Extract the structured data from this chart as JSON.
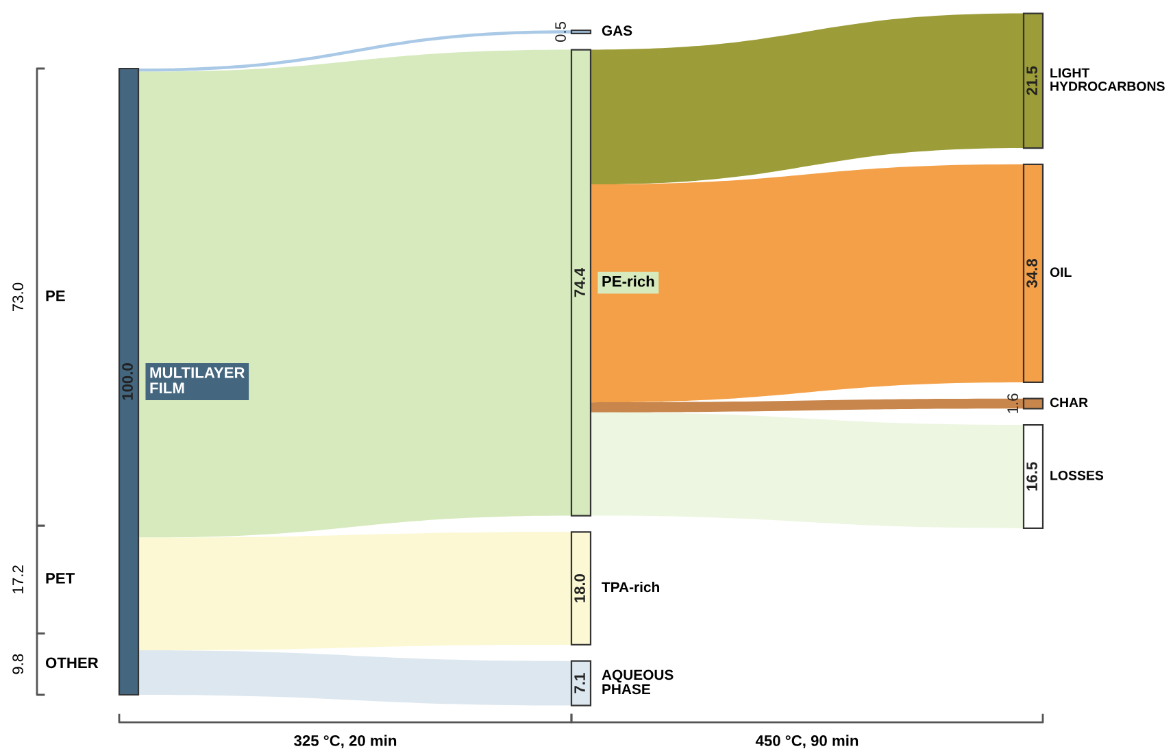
{
  "chart_data": {
    "type": "other",
    "categories": [
      "PE",
      "PET",
      "OTHER",
      "MULTILAYER\nFILM",
      "GAS",
      "PE-rich",
      "TPA-rich",
      "AQUEOUS\nPHASE",
      "LIGHT\nHYDROCARBONS",
      "OIL",
      "CHAR",
      "LOSSES"
    ],
    "series": [
      {
        "values": [
          73.0,
          17.2,
          9.8,
          null,
          null,
          null,
          null,
          null,
          null,
          null,
          null,
          null
        ],
        "value_labels": [
          "73.0",
          "17.2",
          "9.8",
          null,
          null,
          null,
          null,
          null,
          null,
          null,
          null,
          null
        ],
        "colors": [
          "#555555",
          "#555555",
          "#555555",
          null,
          null,
          null,
          null,
          null,
          null,
          null,
          null,
          null
        ]
      },
      {
        "values": [
          null,
          null,
          null,
          100.0,
          null,
          null,
          null,
          null,
          null,
          null,
          null,
          null
        ],
        "value_labels": [
          null,
          null,
          null,
          "100.0",
          null,
          null,
          null,
          null,
          null,
          null,
          null,
          null
        ],
        "colors": [
          null,
          null,
          null,
          "#44667f",
          null,
          null,
          null,
          null,
          null,
          null,
          null,
          null
        ]
      },
      {
        "values": [
          null,
          null,
          null,
          null,
          0.5,
          74.4,
          18.0,
          7.1,
          null,
          null,
          null,
          null
        ],
        "value_labels": [
          null,
          null,
          null,
          null,
          "0.5",
          "74.4",
          "18.0",
          "7.1",
          null,
          null,
          null,
          null
        ],
        "colors": [
          null,
          null,
          null,
          null,
          "#a9c9e6",
          "#d6eabd",
          "#fbf8d3",
          "#dde7ef",
          null,
          null,
          null,
          null
        ]
      },
      {
        "values": [
          null,
          null,
          null,
          null,
          null,
          null,
          null,
          null,
          21.5,
          34.8,
          1.6,
          16.5
        ],
        "value_labels": [
          null,
          null,
          null,
          null,
          null,
          null,
          null,
          null,
          "21.5",
          "34.8",
          "1.6",
          "16.5"
        ],
        "colors": [
          null,
          null,
          null,
          null,
          null,
          null,
          null,
          null,
          "#9c9c38",
          "#f4a048",
          "#c8864c",
          "#ffffff"
        ]
      }
    ],
    "annotations": [
      "325 °C, 20 min",
      "450 °C, 90 min"
    ]
  }
}
